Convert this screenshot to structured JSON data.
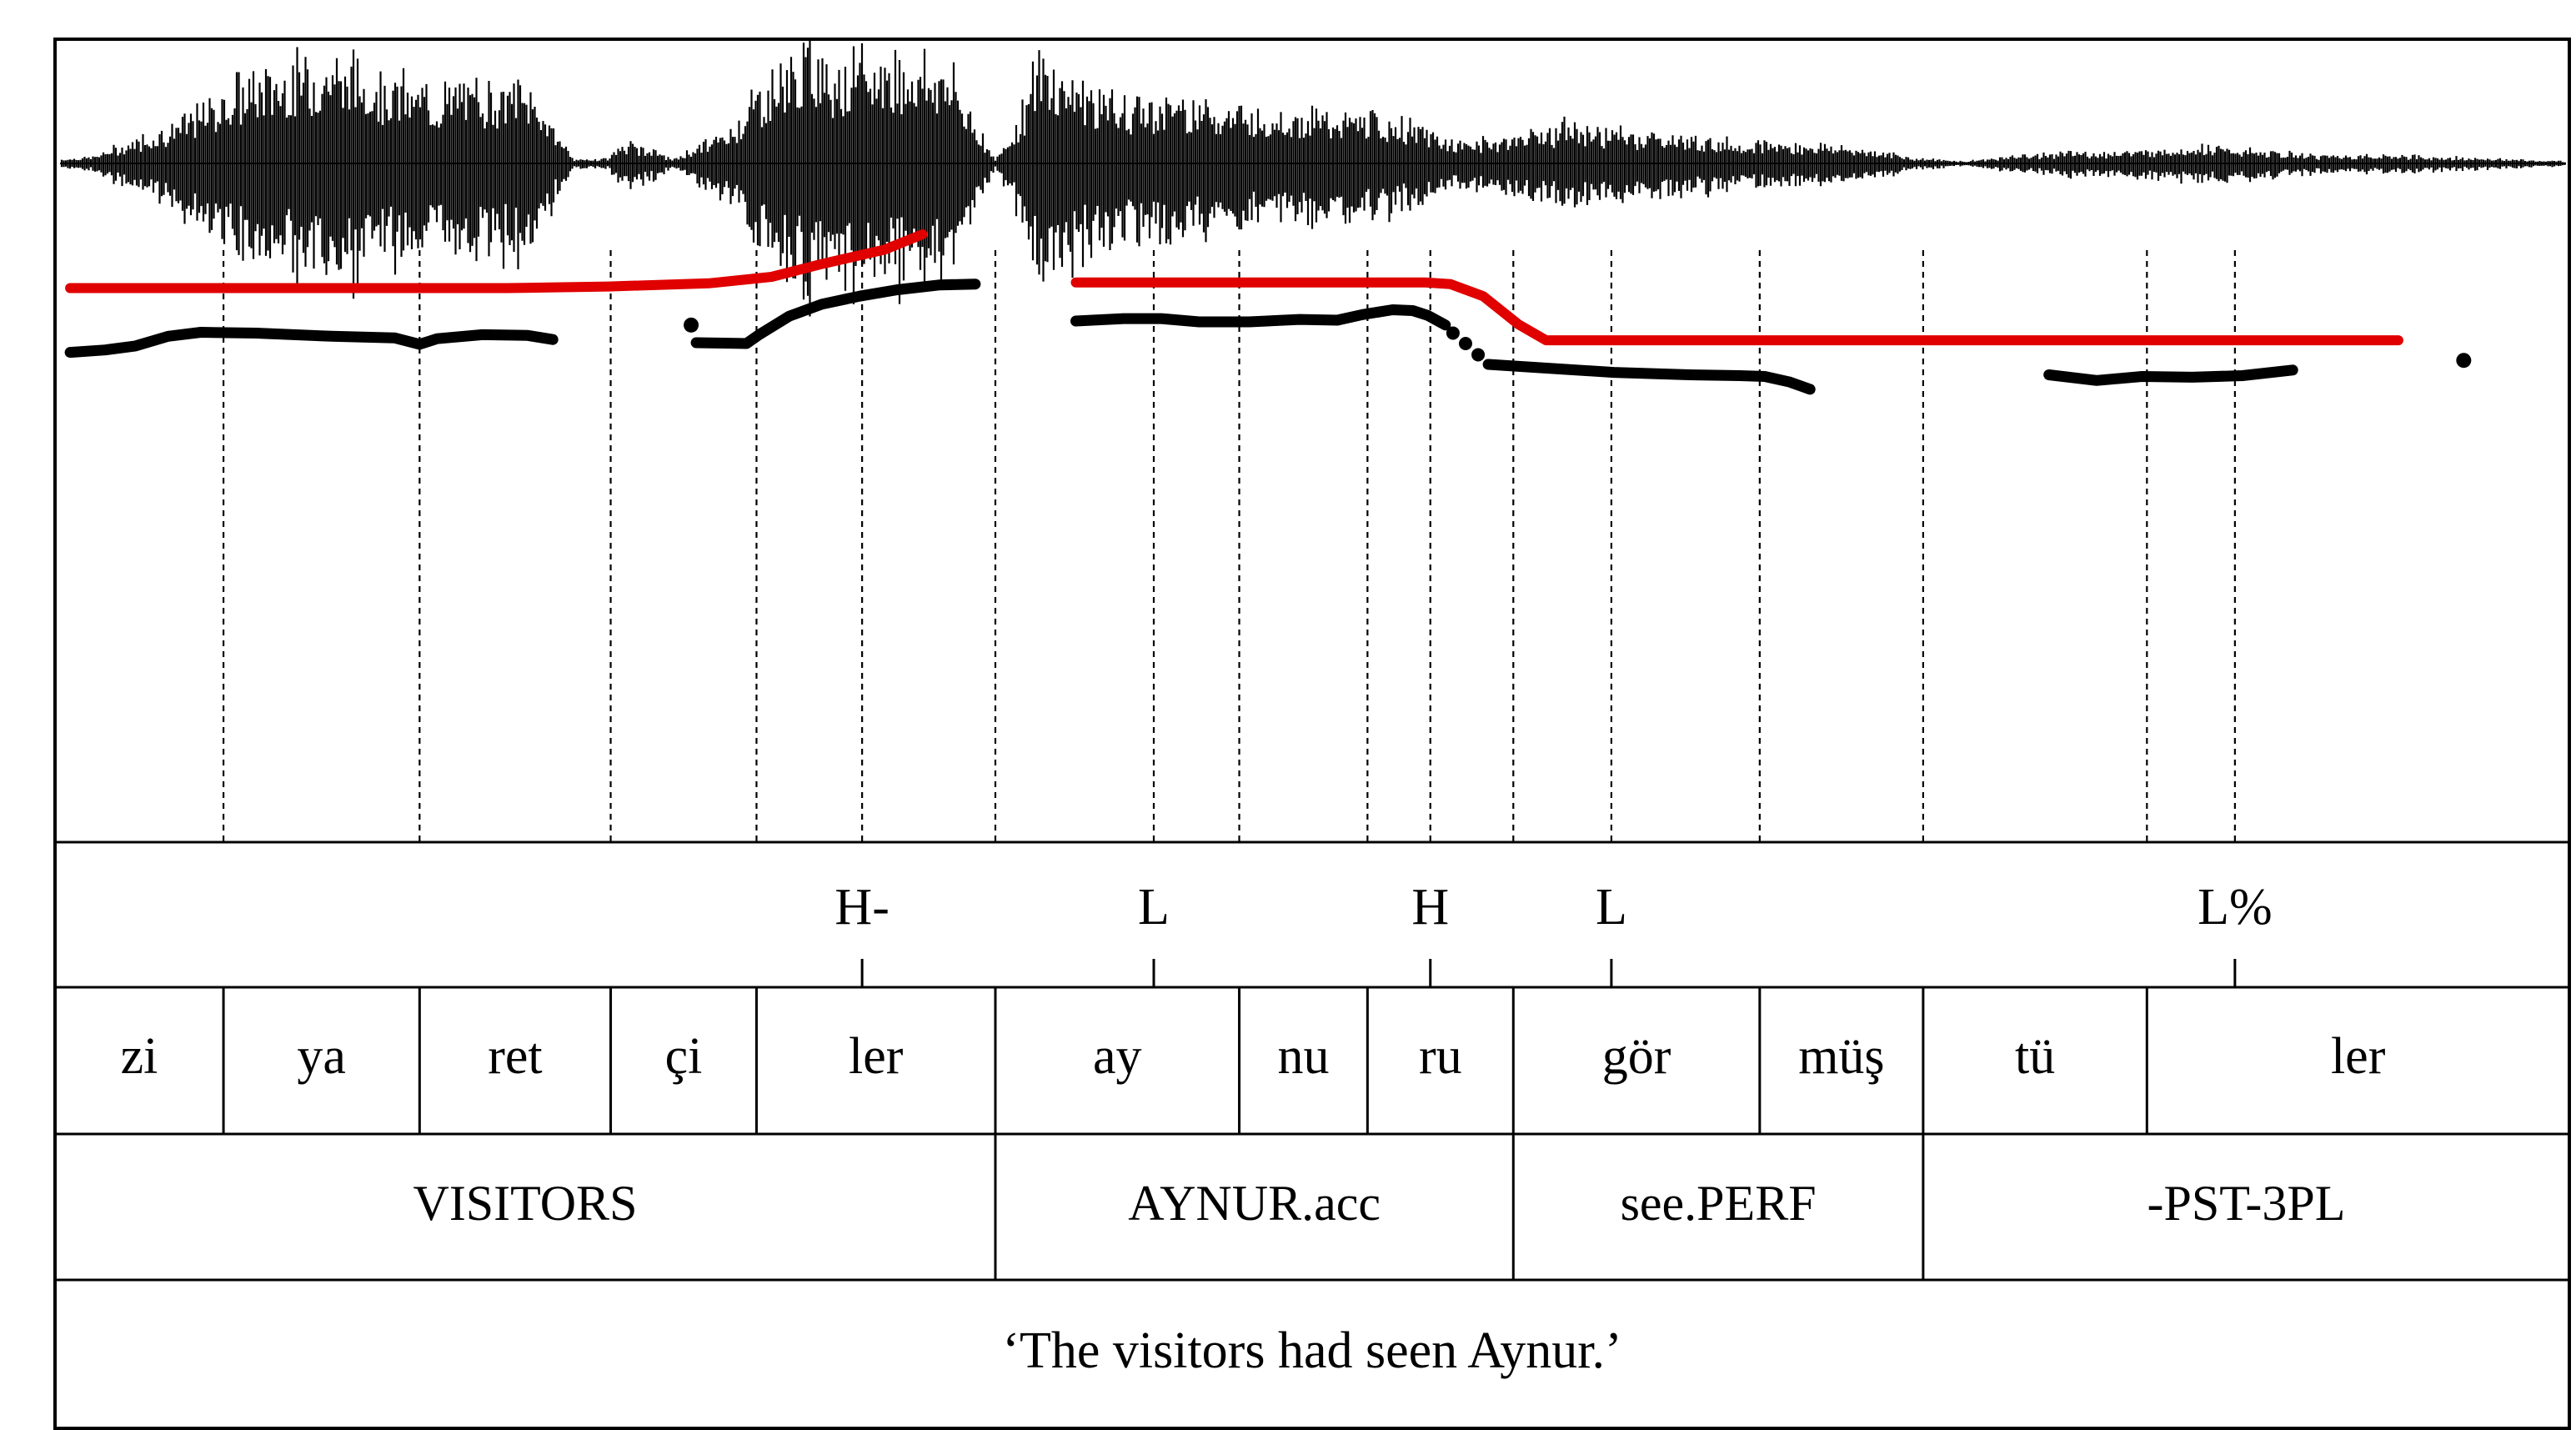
{
  "tones": [
    {
      "label": "H-",
      "anchor_time": 0.321
    },
    {
      "label": "L",
      "anchor_time": 0.437
    },
    {
      "label": "H",
      "anchor_time": 0.547
    },
    {
      "label": "L",
      "anchor_time": 0.619
    },
    {
      "label": "L%",
      "anchor_time": 0.867
    }
  ],
  "syllables": [
    {
      "text": "zi",
      "start": 0.0,
      "end": 0.067
    },
    {
      "text": "ya",
      "start": 0.067,
      "end": 0.145
    },
    {
      "text": "ret",
      "start": 0.145,
      "end": 0.221
    },
    {
      "text": "çi",
      "start": 0.221,
      "end": 0.279
    },
    {
      "text": "ler",
      "start": 0.279,
      "end": 0.374
    },
    {
      "text": "ay",
      "start": 0.374,
      "end": 0.471
    },
    {
      "text": "nu",
      "start": 0.471,
      "end": 0.522
    },
    {
      "text": "ru",
      "start": 0.522,
      "end": 0.58
    },
    {
      "text": "gör",
      "start": 0.58,
      "end": 0.678
    },
    {
      "text": "müş",
      "start": 0.678,
      "end": 0.743
    },
    {
      "text": "tü",
      "start": 0.743,
      "end": 0.832
    },
    {
      "text": "ler",
      "start": 0.832,
      "end": 1.0
    }
  ],
  "glosses": [
    {
      "text": "VISITORS",
      "start": 0.0,
      "end": 0.374
    },
    {
      "text": "AYNUR.acc",
      "start": 0.374,
      "end": 0.58
    },
    {
      "text": "see.PERF",
      "start": 0.58,
      "end": 0.743
    },
    {
      "text": "-PST-3PL",
      "start": 0.743,
      "end": 1.0
    }
  ],
  "translation": "‘The visitors had seen Aynur.’",
  "colors": {
    "stylized_contour": "#e00000",
    "pitch_track": "#000000",
    "waveform": "#000000"
  },
  "pitch_track": [
    {
      "segment": [
        [
          0.006,
          0.39
        ],
        [
          0.02,
          0.387
        ],
        [
          0.032,
          0.382
        ],
        [
          0.045,
          0.37
        ],
        [
          0.058,
          0.365
        ],
        [
          0.08,
          0.366
        ],
        [
          0.11,
          0.37
        ],
        [
          0.135,
          0.372
        ],
        [
          0.145,
          0.38
        ],
        [
          0.152,
          0.373
        ],
        [
          0.17,
          0.368
        ],
        [
          0.188,
          0.369
        ],
        [
          0.198,
          0.374
        ]
      ]
    },
    {
      "segment": [
        [
          0.253,
          0.356
        ]
      ]
    },
    {
      "segment": [
        [
          0.255,
          0.378
        ],
        [
          0.275,
          0.379
        ],
        [
          0.28,
          0.368
        ],
        [
          0.292,
          0.345
        ],
        [
          0.305,
          0.33
        ],
        [
          0.32,
          0.32
        ],
        [
          0.335,
          0.312
        ],
        [
          0.352,
          0.306
        ],
        [
          0.366,
          0.305
        ]
      ]
    },
    {
      "segment": [
        [
          0.406,
          0.351
        ],
        [
          0.425,
          0.348
        ],
        [
          0.44,
          0.348
        ],
        [
          0.455,
          0.352
        ],
        [
          0.475,
          0.352
        ],
        [
          0.495,
          0.349
        ],
        [
          0.51,
          0.35
        ],
        [
          0.52,
          0.343
        ],
        [
          0.532,
          0.337
        ],
        [
          0.54,
          0.338
        ],
        [
          0.546,
          0.344
        ],
        [
          0.553,
          0.356
        ]
      ]
    },
    {
      "segment": [
        [
          0.556,
          0.366
        ],
        [
          0.561,
          0.379
        ],
        [
          0.566,
          0.393
        ]
      ]
    },
    {
      "segment": [
        [
          0.57,
          0.405
        ],
        [
          0.59,
          0.409
        ],
        [
          0.62,
          0.415
        ],
        [
          0.65,
          0.418
        ],
        [
          0.67,
          0.419
        ],
        [
          0.68,
          0.42
        ],
        [
          0.69,
          0.427
        ],
        [
          0.698,
          0.436
        ]
      ]
    },
    {
      "segment": [
        [
          0.793,
          0.418
        ],
        [
          0.812,
          0.425
        ],
        [
          0.83,
          0.42
        ],
        [
          0.85,
          0.421
        ],
        [
          0.87,
          0.419
        ],
        [
          0.89,
          0.412
        ]
      ]
    },
    {
      "segment": [
        [
          0.958,
          0.4
        ]
      ]
    }
  ],
  "stylized_contour": [
    {
      "segment": [
        [
          0.006,
          0.31
        ],
        [
          0.1,
          0.31
        ],
        [
          0.18,
          0.31
        ],
        [
          0.22,
          0.308
        ],
        [
          0.26,
          0.304
        ],
        [
          0.285,
          0.296
        ],
        [
          0.305,
          0.28
        ],
        [
          0.33,
          0.262
        ],
        [
          0.345,
          0.243
        ]
      ]
    },
    {
      "segment": [
        [
          0.406,
          0.303
        ],
        [
          0.47,
          0.303
        ],
        [
          0.545,
          0.303
        ],
        [
          0.555,
          0.305
        ],
        [
          0.568,
          0.32
        ],
        [
          0.582,
          0.355
        ],
        [
          0.593,
          0.375
        ],
        [
          0.62,
          0.375
        ],
        [
          0.7,
          0.375
        ],
        [
          0.8,
          0.375
        ],
        [
          0.932,
          0.375
        ]
      ]
    }
  ]
}
